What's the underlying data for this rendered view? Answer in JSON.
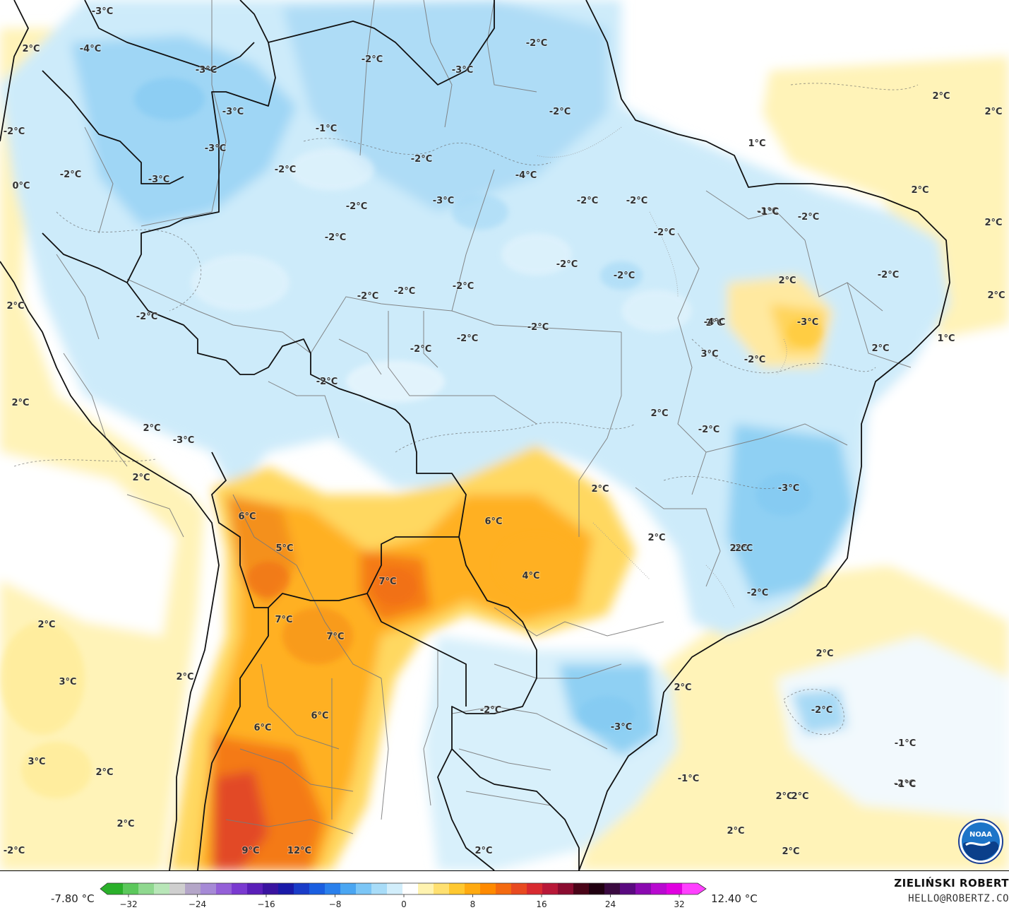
{
  "legend": {
    "min_label": "-7.80 °C",
    "max_label": "12.40 °C",
    "ticks": [
      "−32",
      "−24",
      "−16",
      "−8",
      "0",
      "8",
      "16",
      "24",
      "32"
    ],
    "colors": [
      "#2ab02a",
      "#5cc85c",
      "#8fd88f",
      "#b8e6b8",
      "#cfcfcf",
      "#b4a6c8",
      "#a68ad6",
      "#9460d8",
      "#7a3ad0",
      "#5a1fb8",
      "#3a14a0",
      "#1a1aa8",
      "#1a3cc8",
      "#1a5ee0",
      "#2a80ec",
      "#4aa6f2",
      "#7cc6f6",
      "#a8dcf8",
      "#d2eefb",
      "#ffffff",
      "#fff3b0",
      "#ffe070",
      "#ffc830",
      "#ffaa10",
      "#ff8a00",
      "#f46a10",
      "#e84a20",
      "#d82a30",
      "#b81838",
      "#8a0c30",
      "#4a0418",
      "#200010",
      "#3a0a40",
      "#5a0a80",
      "#8a0ab0",
      "#b80ad0",
      "#e000e0",
      "#ff40ff"
    ]
  },
  "credit": {
    "name": "ZIELIŃSKI ROBERT",
    "email": "HELLO@ROBERTZ.CO"
  },
  "logo": {
    "icon": "noaa-logo-icon",
    "text": "NOAA"
  },
  "labels": [
    {
      "text": "-3°C"
    },
    {
      "text": "-4°C"
    },
    {
      "text": "2°C"
    },
    {
      "text": "-3°C"
    },
    {
      "text": "-2°C"
    },
    {
      "text": "-2°C"
    },
    {
      "text": "-3°C"
    },
    {
      "text": "-3°C"
    },
    {
      "text": "-1°C"
    },
    {
      "text": "-2°C"
    },
    {
      "text": "-3°C"
    },
    {
      "text": "-2°C"
    },
    {
      "text": "-2°C"
    },
    {
      "text": "0°C"
    },
    {
      "text": "-3°C"
    },
    {
      "text": "-2°C"
    },
    {
      "text": "-2°C"
    },
    {
      "text": "-4°C"
    },
    {
      "text": "-3°C"
    },
    {
      "text": "-2°C"
    },
    {
      "text": "-2°C"
    },
    {
      "text": "-2°C"
    },
    {
      "text": "-2°C"
    },
    {
      "text": "-1°C"
    },
    {
      "text": "-2°C"
    },
    {
      "text": "-2°C"
    },
    {
      "text": "-2°C"
    },
    {
      "text": "-2°C"
    },
    {
      "text": "-2°C"
    },
    {
      "text": "-2°C"
    },
    {
      "text": "-2°C"
    },
    {
      "text": "2°C"
    },
    {
      "text": "-2°C"
    },
    {
      "text": "-2°C"
    },
    {
      "text": "-2°C"
    },
    {
      "text": "-1°C"
    },
    {
      "text": "-2°C"
    },
    {
      "text": "2°C"
    },
    {
      "text": "2°C"
    },
    {
      "text": "-3°C"
    },
    {
      "text": "2°C"
    },
    {
      "text": "6°C"
    },
    {
      "text": "5°C"
    },
    {
      "text": "7°C"
    },
    {
      "text": "6°C"
    },
    {
      "text": "4°C"
    },
    {
      "text": "7°C"
    },
    {
      "text": "7°C"
    },
    {
      "text": "2°C"
    },
    {
      "text": "3°C"
    },
    {
      "text": "2°C"
    },
    {
      "text": "6°C"
    },
    {
      "text": "6°C"
    },
    {
      "text": "3°C"
    },
    {
      "text": "2°C"
    },
    {
      "text": "2°C"
    },
    {
      "text": "9°C"
    },
    {
      "text": "12°C"
    },
    {
      "text": "-2°C"
    },
    {
      "text": "2°C"
    },
    {
      "text": "-3°C"
    },
    {
      "text": "-3°C"
    },
    {
      "text": "2°C"
    },
    {
      "text": "2°C"
    },
    {
      "text": "2°C"
    },
    {
      "text": "2°C"
    },
    {
      "text": "2°C"
    },
    {
      "text": "1°C"
    },
    {
      "text": "2°C"
    },
    {
      "text": "2°C"
    },
    {
      "text": "2°C"
    },
    {
      "text": "1°C"
    },
    {
      "text": "-1°C"
    },
    {
      "text": "-2°C"
    },
    {
      "text": "2°C"
    },
    {
      "text": "-2°C"
    },
    {
      "text": "3°C"
    },
    {
      "text": "-4°C"
    },
    {
      "text": "2°C"
    },
    {
      "text": "-2°C"
    },
    {
      "text": "-2°C"
    },
    {
      "text": "2°C"
    },
    {
      "text": "-2°C"
    },
    {
      "text": "-3°C"
    },
    {
      "text": "2°C"
    },
    {
      "text": "-2°C"
    },
    {
      "text": "-2°C"
    },
    {
      "text": "2°C"
    },
    {
      "text": "-2°C"
    },
    {
      "text": "2°C"
    },
    {
      "text": "-2°C"
    },
    {
      "text": "-1°C"
    },
    {
      "text": "-1°C"
    },
    {
      "text": "2°C"
    },
    {
      "text": "2°C"
    },
    {
      "text": "2°C"
    },
    {
      "text": "2°C"
    }
  ]
}
